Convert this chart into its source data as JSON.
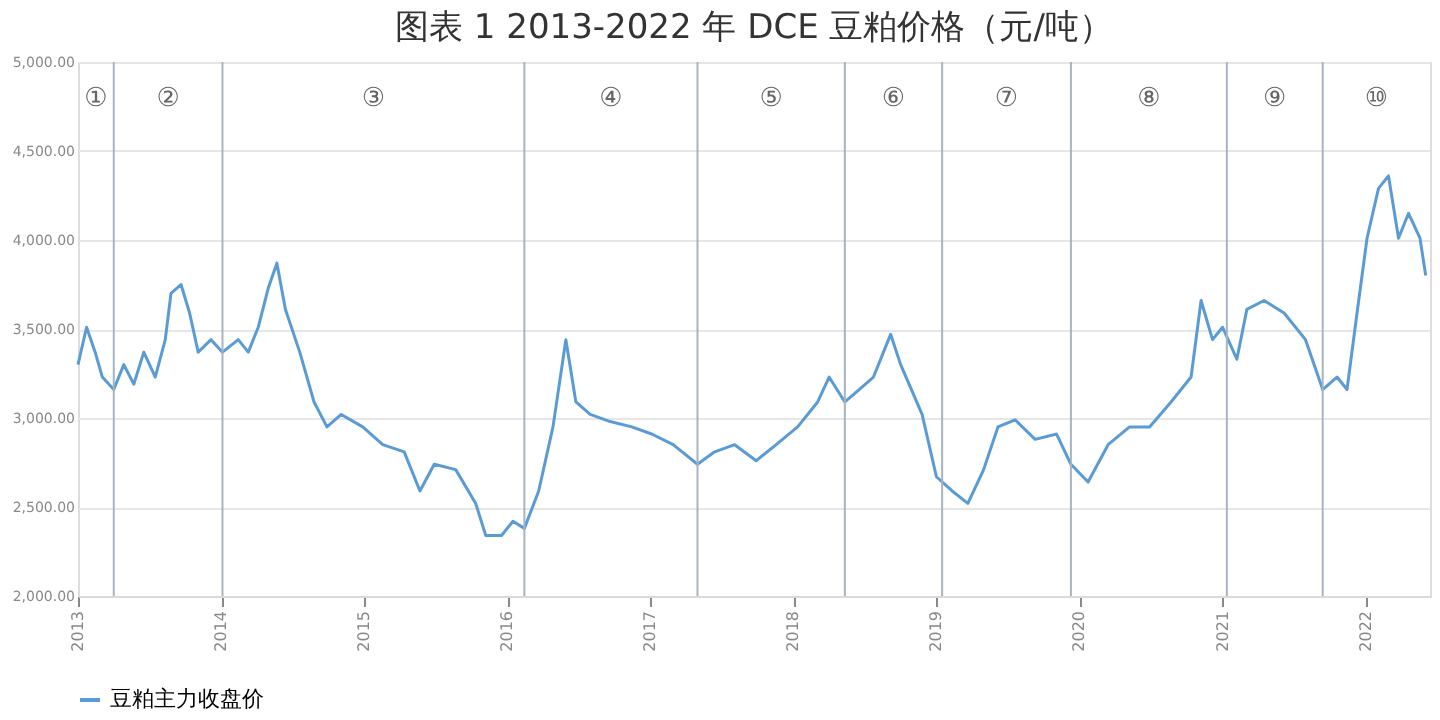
{
  "chart_data": {
    "type": "line",
    "title": "图表 1 2013-2022 年 DCE 豆粕价格（元/吨）",
    "x": [
      2013.0,
      2013.06,
      2013.12,
      2013.17,
      2013.25,
      2013.32,
      2013.39,
      2013.46,
      2013.54,
      2013.61,
      2013.65,
      2013.72,
      2013.78,
      2013.84,
      2013.93,
      2014.01,
      2014.12,
      2014.19,
      2014.26,
      2014.33,
      2014.39,
      2014.45,
      2014.55,
      2014.65,
      2014.74,
      2014.84,
      2014.99,
      2015.13,
      2015.28,
      2015.39,
      2015.49,
      2015.64,
      2015.78,
      2015.85,
      2015.96,
      2016.04,
      2016.12,
      2016.22,
      2016.32,
      2016.41,
      2016.48,
      2016.58,
      2016.72,
      2016.87,
      2017.01,
      2017.16,
      2017.33,
      2017.45,
      2017.59,
      2017.74,
      2017.88,
      2018.03,
      2018.17,
      2018.25,
      2018.36,
      2018.46,
      2018.56,
      2018.68,
      2018.75,
      2018.9,
      2019.0,
      2019.11,
      2019.22,
      2019.33,
      2019.43,
      2019.55,
      2019.69,
      2019.84,
      2019.94,
      2020.06,
      2020.2,
      2020.35,
      2020.49,
      2020.64,
      2020.78,
      2020.85,
      2020.93,
      2021.0,
      2021.1,
      2021.17,
      2021.29,
      2021.43,
      2021.58,
      2021.7,
      2021.8,
      2021.87,
      2021.94,
      2022.01,
      2022.09,
      2022.16,
      2022.23,
      2022.3,
      2022.38,
      2022.42
    ],
    "series": [
      {
        "name": "豆粕主力收盘价",
        "color": "#5b9bd5",
        "values": [
          3300,
          3510,
          3370,
          3230,
          3160,
          3300,
          3190,
          3370,
          3230,
          3440,
          3700,
          3750,
          3590,
          3370,
          3440,
          3370,
          3440,
          3370,
          3510,
          3730,
          3870,
          3610,
          3370,
          3090,
          2950,
          3020,
          2950,
          2850,
          2810,
          2590,
          2740,
          2710,
          2520,
          2340,
          2340,
          2420,
          2380,
          2590,
          2950,
          3440,
          3090,
          3020,
          2980,
          2950,
          2910,
          2850,
          2740,
          2810,
          2850,
          2760,
          2850,
          2950,
          3090,
          3230,
          3090,
          3160,
          3230,
          3470,
          3300,
          3020,
          2670,
          2590,
          2520,
          2710,
          2950,
          2990,
          2880,
          2910,
          2740,
          2640,
          2850,
          2950,
          2950,
          3090,
          3230,
          3660,
          3440,
          3510,
          3330,
          3610,
          3660,
          3590,
          3440,
          3160,
          3230,
          3160,
          3590,
          4010,
          4290,
          4360,
          4010,
          4150,
          4010,
          3800
        ]
      }
    ],
    "xlim": [
      2013.0,
      2022.45
    ],
    "xticks": [
      2013,
      2014,
      2015,
      2016,
      2017,
      2018,
      2019,
      2020,
      2021,
      2022
    ],
    "ylim": [
      2000,
      5000
    ],
    "yticks": [
      {
        "value": 2000,
        "label": "2,000.00"
      },
      {
        "value": 2500,
        "label": "2,500.00"
      },
      {
        "value": 3000,
        "label": "3,000.00"
      },
      {
        "value": 3500,
        "label": "3,500.00"
      },
      {
        "value": 4000,
        "label": "4,000.00"
      },
      {
        "value": 4500,
        "label": "4,500.00"
      },
      {
        "value": 5000,
        "label": "5,000.00"
      }
    ],
    "grid": "y",
    "legend": "bottom",
    "ref_lines": [
      {
        "axis": "x",
        "value": 2013.25,
        "label": null,
        "color": "#a6b4c2"
      },
      {
        "axis": "x",
        "value": 2014.01,
        "label": null,
        "color": "#a6b4c2"
      },
      {
        "axis": "x",
        "value": 2016.12,
        "label": null,
        "color": "#a6b4c2"
      },
      {
        "axis": "x",
        "value": 2017.33,
        "label": null,
        "color": "#a6b4c2"
      },
      {
        "axis": "x",
        "value": 2018.36,
        "label": null,
        "color": "#a6b4c2"
      },
      {
        "axis": "x",
        "value": 2019.04,
        "label": null,
        "color": "#a6b4c2"
      },
      {
        "axis": "x",
        "value": 2019.94,
        "label": null,
        "color": "#a6b4c2"
      },
      {
        "axis": "x",
        "value": 2021.03,
        "label": null,
        "color": "#a6b4c2"
      },
      {
        "axis": "x",
        "value": 2021.7,
        "label": null,
        "color": "#a6b4c2"
      }
    ],
    "annotations": [
      "①",
      "②",
      "③",
      "④",
      "⑤",
      "⑥",
      "⑦",
      "⑧",
      "⑨",
      "⑩"
    ]
  }
}
